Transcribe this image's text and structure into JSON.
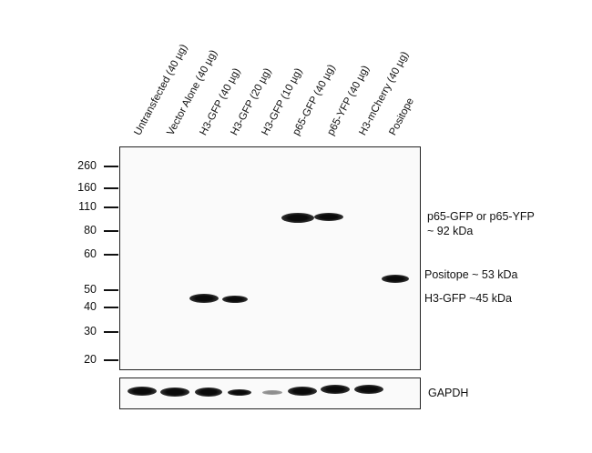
{
  "lanes": [
    "Untransfected (40 µg)",
    "Vector Alone (40 µg)",
    "H3-GFP (40 µg)",
    "H3-GFP (20 µg)",
    "H3-GFP (10 µg)",
    "p65-GFP (40 µg)",
    "p65-YFP (40 µg)",
    "H3-mCherry (40 µg)",
    "Positope"
  ],
  "markers": [
    "260",
    "160",
    "110",
    "80",
    "60",
    "50",
    "40",
    "30",
    "20"
  ],
  "annotations": {
    "p65_line1": "p65-GFP or p65-YFP",
    "p65_line2": "~ 92 kDa",
    "positope": "Positope ~ 53 kDa",
    "h3": "H3-GFP ~45 kDa",
    "gapdh": "GAPDH"
  },
  "colors": {
    "band": "#0a0a0a",
    "panel": "#fafafa",
    "border": "#222222"
  }
}
